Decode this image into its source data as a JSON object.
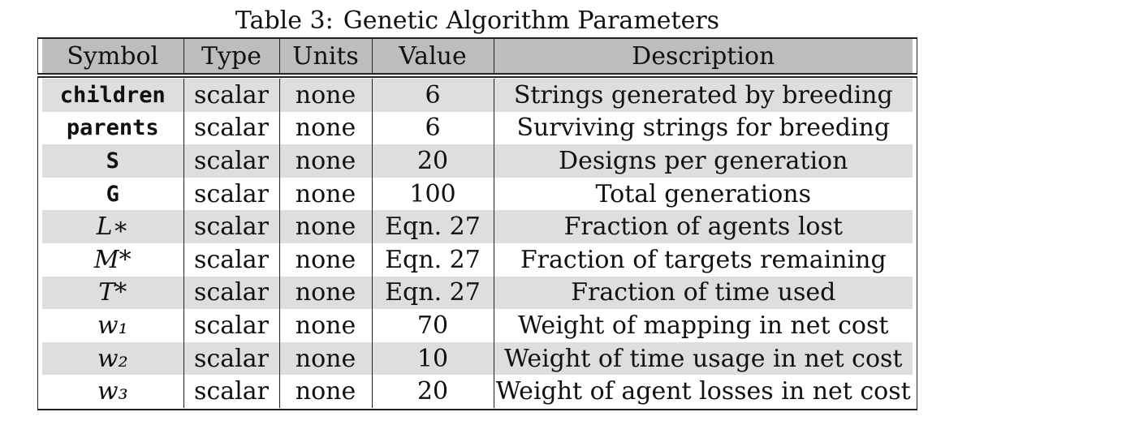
{
  "caption": {
    "label": "Table 3:",
    "title": "Genetic Algorithm Parameters"
  },
  "table": {
    "headers": [
      "Symbol",
      "Type",
      "Units",
      "Value",
      "Description"
    ],
    "rows": [
      {
        "symbol": "children",
        "symbol_style": "mono",
        "type": "scalar",
        "units": "none",
        "value": "6",
        "description": "Strings generated by breeding"
      },
      {
        "symbol": "parents",
        "symbol_style": "mono",
        "type": "scalar",
        "units": "none",
        "value": "6",
        "description": "Surviving strings for breeding"
      },
      {
        "symbol": "S",
        "symbol_style": "mono",
        "type": "scalar",
        "units": "none",
        "value": "20",
        "description": "Designs per generation"
      },
      {
        "symbol": "G",
        "symbol_style": "mono",
        "type": "scalar",
        "units": "none",
        "value": "100",
        "description": "Total generations"
      },
      {
        "symbol": "L∗",
        "symbol_style": "math",
        "type": "scalar",
        "units": "none",
        "value": "Eqn. 27",
        "description": "Fraction of agents lost"
      },
      {
        "symbol": "M*",
        "symbol_style": "math",
        "type": "scalar",
        "units": "none",
        "value": "Eqn. 27",
        "description": "Fraction of targets remaining"
      },
      {
        "symbol": "T*",
        "symbol_style": "math",
        "type": "scalar",
        "units": "none",
        "value": "Eqn. 27",
        "description": "Fraction of time used"
      },
      {
        "symbol": "w₁",
        "symbol_style": "math",
        "type": "scalar",
        "units": "none",
        "value": "70",
        "description": "Weight of mapping in net cost"
      },
      {
        "symbol": "w₂",
        "symbol_style": "math",
        "type": "scalar",
        "units": "none",
        "value": "10",
        "description": "Weight of time usage in net cost"
      },
      {
        "symbol": "w₃",
        "symbol_style": "math",
        "type": "scalar",
        "units": "none",
        "value": "20",
        "description": "Weight of agent losses in net cost"
      }
    ]
  },
  "colors": {
    "header_bg": "#bdbdbd",
    "shaded_row_bg": "#dedede",
    "rule": "#222222"
  }
}
